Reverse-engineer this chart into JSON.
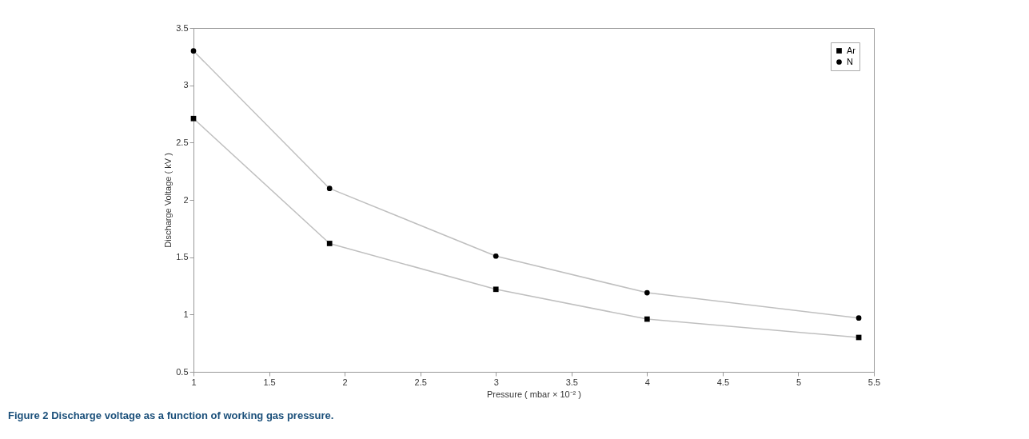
{
  "chart_data": {
    "type": "line",
    "xlabel": "Pressure ( mbar × 10⁻² )",
    "ylabel": "Discharge Voltage ( kV )",
    "annotations": [
      "Figure 2 Discharge voltage as a function of working gas pressure."
    ],
    "x": [
      1,
      1.9,
      3,
      4,
      5.4
    ],
    "series": [
      {
        "name": "Ar",
        "color": "#000000",
        "marker": "square",
        "values": [
          2.71,
          1.62,
          1.22,
          0.96,
          0.8
        ]
      },
      {
        "name": "N",
        "color": "#000000",
        "marker": "circle",
        "values": [
          3.3,
          2.1,
          1.51,
          1.19,
          0.97
        ]
      }
    ],
    "xlim": [
      1,
      5.5
    ],
    "xticks": [
      1,
      1.5,
      2,
      2.5,
      3,
      3.5,
      4,
      4.5,
      5,
      5.5
    ],
    "ylim": [
      0.5,
      3.5
    ],
    "yticks": [
      0.5,
      1,
      1.5,
      2,
      2.5,
      3,
      3.5
    ],
    "grid": false,
    "legend": "top right"
  }
}
